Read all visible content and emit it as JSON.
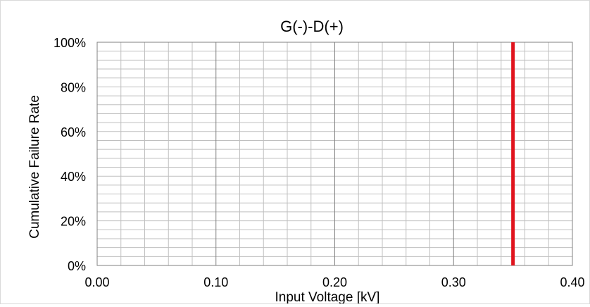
{
  "chart_data": {
    "type": "line",
    "title": "G(-)-D(+)",
    "xlabel": "Input Voltage [kV]",
    "ylabel": "Cumulative Failure Rate",
    "xlim": [
      0,
      0.4
    ],
    "ylim": [
      0,
      1
    ],
    "x_ticks": [
      "0.00",
      "0.10",
      "0.20",
      "0.30",
      "0.40"
    ],
    "x_tick_values": [
      0,
      0.1,
      0.2,
      0.3,
      0.4
    ],
    "x_minor_step": 0.02,
    "y_ticks": [
      "0%",
      "20%",
      "40%",
      "60%",
      "80%",
      "100%"
    ],
    "y_tick_values": [
      0,
      0.2,
      0.4,
      0.6,
      0.8,
      1.0
    ],
    "y_minor_step": 0.04,
    "grid": true,
    "legend": "none",
    "series": [
      {
        "x": [
          0.35,
          0.35
        ],
        "y": [
          0,
          1
        ],
        "color": "#e0141e"
      }
    ]
  }
}
